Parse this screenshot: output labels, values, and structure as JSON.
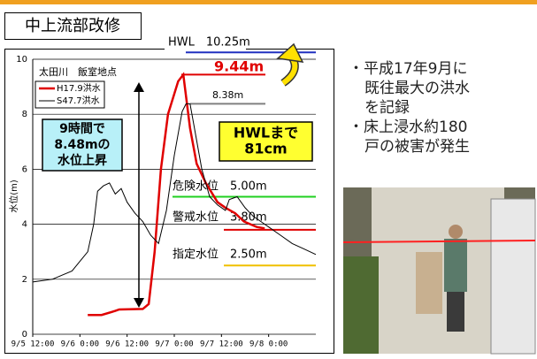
{
  "slide": {
    "title": "中上流部改修",
    "bullets": [
      "・平成17年9月に",
      "既往最大の洪水",
      "を記録",
      "・床上浸水約180",
      "戸の被害が発生"
    ]
  },
  "chart_data": {
    "type": "line",
    "subtitle": "太田川　飯室地点",
    "ylabel": "水位(m)",
    "xlim": [
      0,
      72
    ],
    "ylim": [
      0,
      10
    ],
    "yticks": [
      0,
      2,
      4,
      6,
      8,
      10
    ],
    "xticks": [
      {
        "value": 0,
        "label": "9/5 12:00"
      },
      {
        "value": 12,
        "label": "9/6 0:00"
      },
      {
        "value": 24,
        "label": "9/6 12:00"
      },
      {
        "value": 36,
        "label": "9/7 0:00"
      },
      {
        "value": 48,
        "label": "9/7 12:00"
      },
      {
        "value": 60,
        "label": "9/8 0:00"
      }
    ],
    "grid": true,
    "series": [
      {
        "name": "H17.9洪水",
        "color": "#e00000",
        "x": [
          14,
          17.5,
          21,
          22,
          28,
          29.5,
          31,
          32.6,
          34.4,
          37,
          38.3,
          40,
          41.7,
          44,
          47,
          49,
          51.5,
          53.7,
          57,
          59
        ],
        "values": [
          0.7,
          0.7,
          0.85,
          0.9,
          0.92,
          1.1,
          3,
          6,
          8,
          9.2,
          9.44,
          7.5,
          6.2,
          5.5,
          4.8,
          4.6,
          4.4,
          4.1,
          3.9,
          3.85
        ]
      },
      {
        "name": "S47.7洪水",
        "color": "#000000",
        "x": [
          0,
          5,
          10,
          14,
          15.5,
          16.5,
          18,
          19.5,
          21,
          22.5,
          24,
          26,
          28,
          30,
          32,
          34,
          36,
          38,
          39,
          40,
          41,
          43,
          45,
          47,
          49,
          50,
          52,
          54,
          56,
          58,
          60,
          63,
          66,
          69,
          72
        ],
        "values": [
          1.9,
          2.0,
          2.3,
          3.0,
          4.0,
          5.2,
          5.4,
          5.5,
          5.1,
          5.3,
          4.8,
          4.4,
          4.1,
          3.6,
          3.3,
          4.5,
          6.5,
          8.1,
          8.38,
          8.38,
          7.6,
          6.0,
          5.0,
          4.7,
          4.5,
          4.9,
          5.0,
          4.6,
          4.3,
          4.1,
          3.9,
          3.6,
          3.3,
          3.1,
          2.9
        ]
      }
    ],
    "reference_lines": [
      {
        "label": "HWL　10.25m",
        "value": 10.25,
        "color": "#2030c0"
      },
      {
        "label": "9.44m",
        "value": 9.44,
        "color": "#e00000"
      },
      {
        "label": "8.38m",
        "value": 8.38,
        "color": "#808080"
      },
      {
        "label": "危険水位　5.00m",
        "value": 5.0,
        "color": "#20d020"
      },
      {
        "label": "警戒水位　3.80m",
        "value": 3.8,
        "color": "#e00000"
      },
      {
        "label": "指定水位　2.50m",
        "value": 2.5,
        "color": "#f0c000"
      }
    ],
    "annotations": [
      [
        "9時間で",
        "8.48mの",
        "水位上昇"
      ],
      [
        "HWLまで",
        "81cm"
      ]
    ]
  }
}
